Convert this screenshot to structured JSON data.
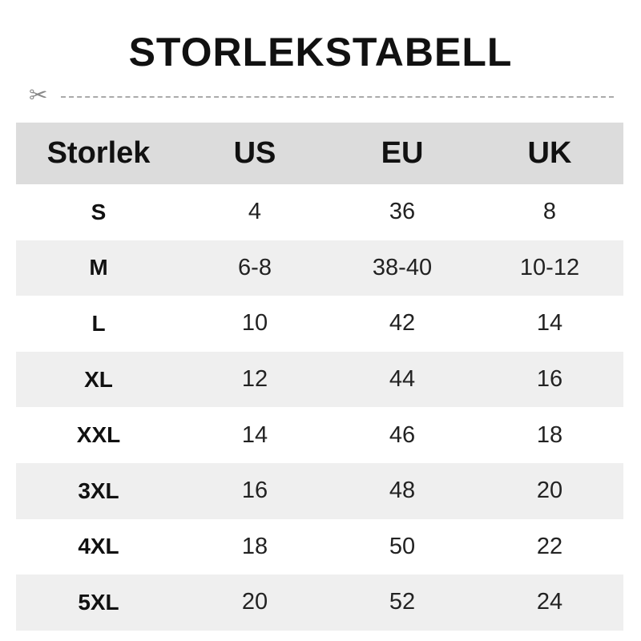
{
  "title": "STORLEKSTABELL",
  "cut_line_icon": "scissors-icon",
  "colors": {
    "header_bg": "#dcdcdc",
    "alt_row_bg": "#efefef",
    "text": "#111111"
  },
  "table": {
    "headers": [
      "Storlek",
      "US",
      "EU",
      "UK"
    ],
    "rows": [
      [
        "S",
        "4",
        "36",
        "8"
      ],
      [
        "M",
        "6-8",
        "38-40",
        "10-12"
      ],
      [
        "L",
        "10",
        "42",
        "14"
      ],
      [
        "XL",
        "12",
        "44",
        "16"
      ],
      [
        "XXL",
        "14",
        "46",
        "18"
      ],
      [
        "3XL",
        "16",
        "48",
        "20"
      ],
      [
        "4XL",
        "18",
        "50",
        "22"
      ],
      [
        "5XL",
        "20",
        "52",
        "24"
      ]
    ]
  }
}
